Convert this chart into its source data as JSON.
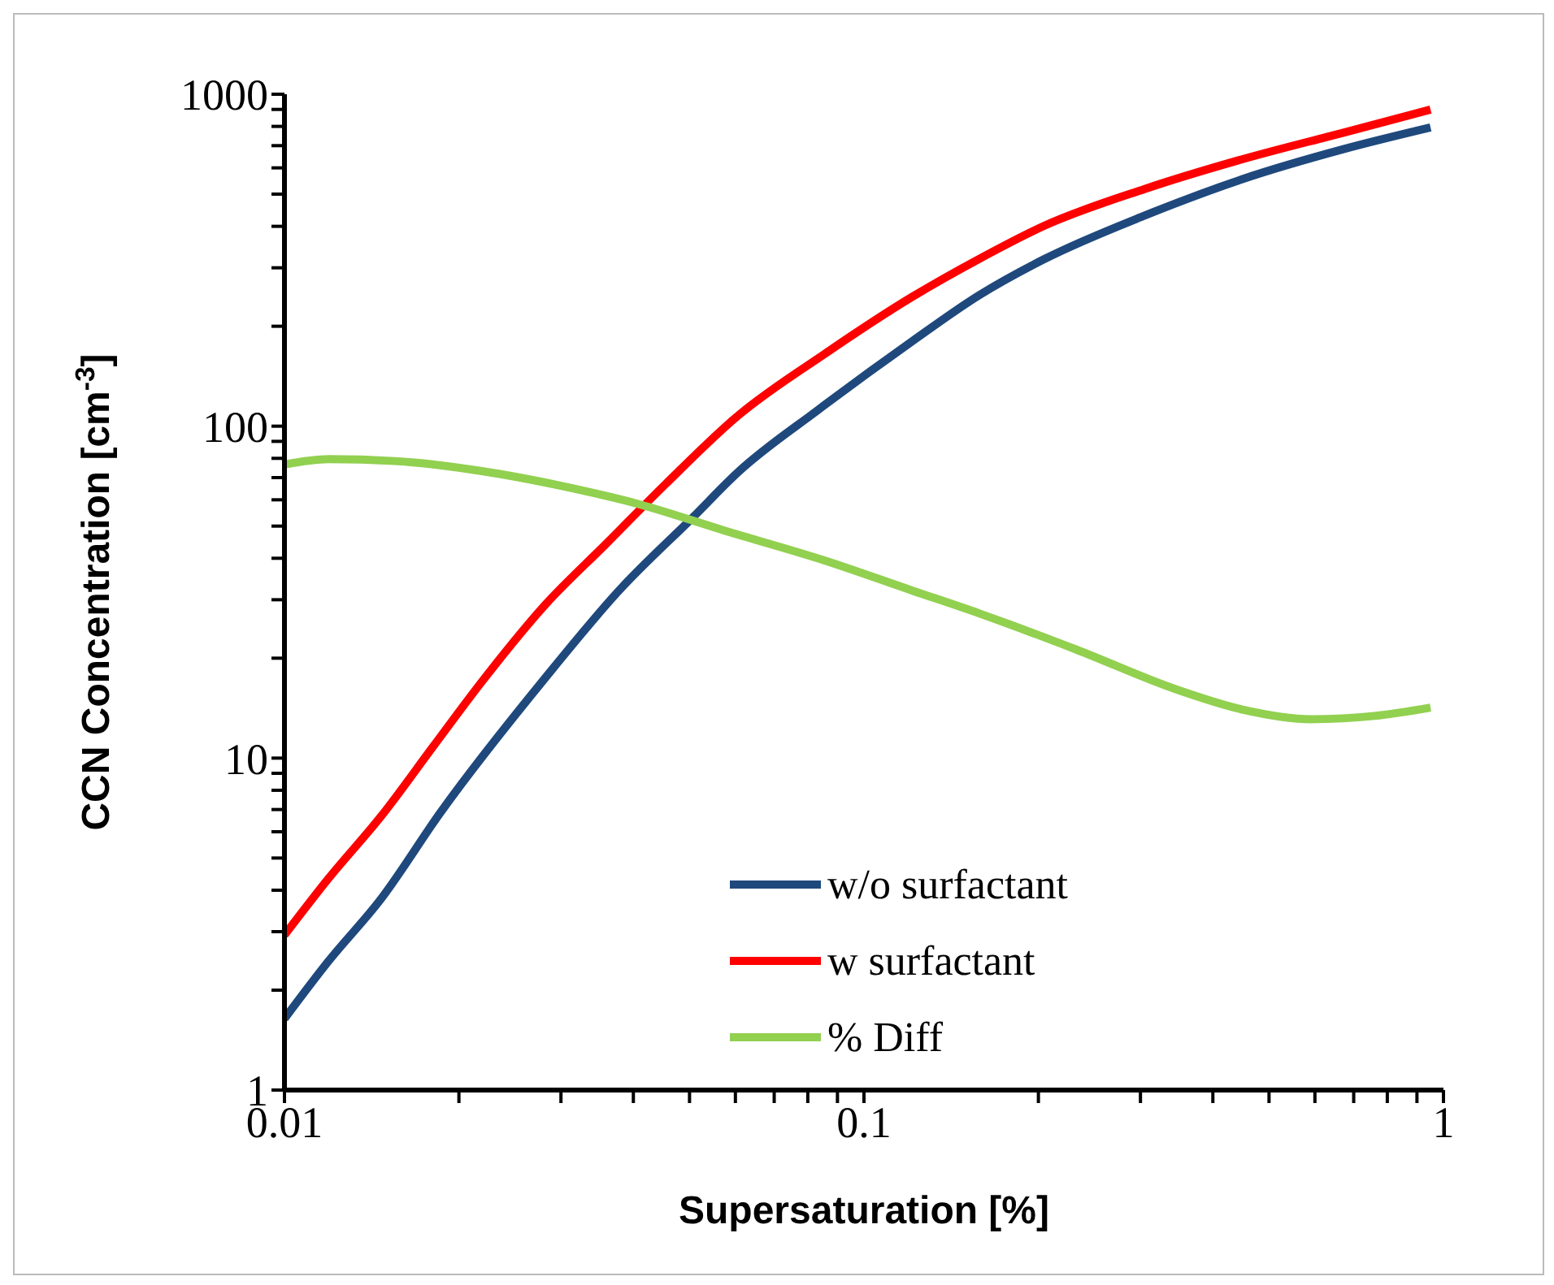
{
  "chart_data": {
    "type": "line",
    "xlabel": "Supersaturation [%]",
    "ylabel": "CCN Concentration [cm$^{-3}$]",
    "log": "xy",
    "xlim": [
      0.01,
      1
    ],
    "ylim": [
      1,
      1000
    ],
    "xticks": [
      0.01,
      {
        "value": 0.02,
        "label": null
      },
      {
        "value": 0.03,
        "label": null
      },
      {
        "value": 0.04,
        "label": null
      },
      {
        "value": 0.05,
        "label": null
      },
      {
        "value": 0.06,
        "label": null
      },
      {
        "value": 0.07,
        "label": null
      },
      {
        "value": 0.08,
        "label": null
      },
      {
        "value": 0.09,
        "label": null
      },
      0.1,
      {
        "value": 0.2,
        "label": null
      },
      {
        "value": 0.3,
        "label": null
      },
      {
        "value": 0.4,
        "label": null
      },
      {
        "value": 0.5,
        "label": null
      },
      {
        "value": 0.6,
        "label": null
      },
      {
        "value": 0.7,
        "label": null
      },
      {
        "value": 0.8,
        "label": null
      },
      {
        "value": 0.9,
        "label": null
      },
      1
    ],
    "yticks": [
      1,
      {
        "value": 2,
        "label": null
      },
      {
        "value": 3,
        "label": null
      },
      {
        "value": 4,
        "label": null
      },
      {
        "value": 5,
        "label": null
      },
      {
        "value": 6,
        "label": null
      },
      {
        "value": 7,
        "label": null
      },
      {
        "value": 8,
        "label": null
      },
      {
        "value": 9,
        "label": null
      },
      10,
      {
        "value": 20,
        "label": null
      },
      {
        "value": 30,
        "label": null
      },
      {
        "value": 40,
        "label": null
      },
      {
        "value": 50,
        "label": null
      },
      {
        "value": 60,
        "label": null
      },
      {
        "value": 70,
        "label": null
      },
      {
        "value": 80,
        "label": null
      },
      {
        "value": 90,
        "label": null
      },
      100,
      {
        "value": 200,
        "label": null
      },
      {
        "value": 300,
        "label": null
      },
      {
        "value": 400,
        "label": null
      },
      {
        "value": 500,
        "label": null
      },
      {
        "value": 600,
        "label": null
      },
      {
        "value": 700,
        "label": null
      },
      {
        "value": 800,
        "label": null
      },
      {
        "value": 900,
        "label": null
      },
      1000
    ],
    "grid": false,
    "legend": "bottom",
    "marker": "none",
    "line_style": "solid",
    "series": [
      {
        "name": "w/o surfactant",
        "color": "#1f497d",
        "x": [
          0.01,
          0.0119,
          0.0147,
          0.0186,
          0.0283,
          0.0378,
          0.0506,
          0.0608,
          0.0834,
          0.121,
          0.158,
          0.205,
          0.305,
          0.45,
          0.67,
          0.95
        ],
        "values": [
          1.64,
          2.44,
          3.78,
          6.87,
          17.6,
          32,
          53,
          73,
          112,
          180,
          248,
          319,
          431,
          555,
          682,
          794
        ]
      },
      {
        "name": "w surfactant",
        "color": "#ff0000",
        "x": [
          0.01,
          0.0119,
          0.0147,
          0.0181,
          0.0218,
          0.0283,
          0.0358,
          0.0455,
          0.0608,
          0.0855,
          0.121,
          0.158,
          0.205,
          0.305,
          0.45,
          0.67,
          0.95
        ],
        "values": [
          2.93,
          4.33,
          6.7,
          10.9,
          16.8,
          29.2,
          44,
          67,
          108,
          165,
          245,
          319,
          402,
          518,
          637,
          765,
          899
        ]
      },
      {
        "name": "% Diff",
        "color": "#92d050",
        "x": [
          0.01,
          0.0119,
          0.0155,
          0.0218,
          0.0299,
          0.0409,
          0.0576,
          0.0855,
          0.121,
          0.158,
          0.233,
          0.346,
          0.45,
          0.59,
          0.76,
          0.95
        ],
        "values": [
          76.7,
          79.6,
          78.5,
          73.3,
          66.2,
          58.2,
          48.4,
          39.4,
          32,
          27.3,
          21.2,
          16.1,
          14,
          13.1,
          13.4,
          14.2
        ]
      }
    ]
  }
}
